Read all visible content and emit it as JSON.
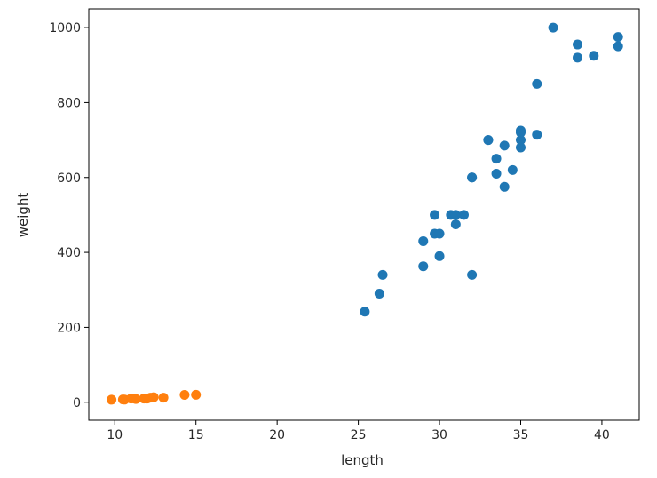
{
  "chart_data": {
    "type": "scatter",
    "xlabel": "length",
    "ylabel": "weight",
    "xlim": [
      8.4,
      42.3
    ],
    "ylim": [
      -48,
      1050
    ],
    "xticks": [
      10,
      15,
      20,
      25,
      30,
      35,
      40
    ],
    "yticks": [
      0,
      200,
      400,
      600,
      800,
      1000
    ],
    "grid": false,
    "series": [
      {
        "color": "#1f77b4",
        "points": [
          [
            25.4,
            242
          ],
          [
            26.3,
            290
          ],
          [
            26.5,
            340
          ],
          [
            29.0,
            363
          ],
          [
            29.0,
            430
          ],
          [
            29.7,
            450
          ],
          [
            29.7,
            500
          ],
          [
            30.0,
            390
          ],
          [
            30.0,
            450
          ],
          [
            30.7,
            500
          ],
          [
            31.0,
            475
          ],
          [
            31.0,
            500
          ],
          [
            31.5,
            500
          ],
          [
            32.0,
            340
          ],
          [
            32.0,
            600
          ],
          [
            32.0,
            600
          ],
          [
            33.0,
            700
          ],
          [
            33.0,
            700
          ],
          [
            33.5,
            610
          ],
          [
            33.5,
            650
          ],
          [
            34.0,
            575
          ],
          [
            34.0,
            685
          ],
          [
            34.5,
            620
          ],
          [
            35.0,
            680
          ],
          [
            35.0,
            700
          ],
          [
            35.0,
            725
          ],
          [
            35.0,
            720
          ],
          [
            36.0,
            714
          ],
          [
            36.0,
            850
          ],
          [
            37.0,
            1000
          ],
          [
            38.5,
            920
          ],
          [
            38.5,
            955
          ],
          [
            39.5,
            925
          ],
          [
            41.0,
            975
          ],
          [
            41.0,
            950
          ]
        ]
      },
      {
        "color": "#ff7f0e",
        "points": [
          [
            9.8,
            6.7
          ],
          [
            10.5,
            7.5
          ],
          [
            10.6,
            7.0
          ],
          [
            11.0,
            9.7
          ],
          [
            11.2,
            9.8
          ],
          [
            11.3,
            8.7
          ],
          [
            11.8,
            10.0
          ],
          [
            11.8,
            9.9
          ],
          [
            12.0,
            9.8
          ],
          [
            12.2,
            12.2
          ],
          [
            12.4,
            13.4
          ],
          [
            13.0,
            12.2
          ],
          [
            14.3,
            19.7
          ],
          [
            15.0,
            19.9
          ]
        ]
      }
    ]
  }
}
